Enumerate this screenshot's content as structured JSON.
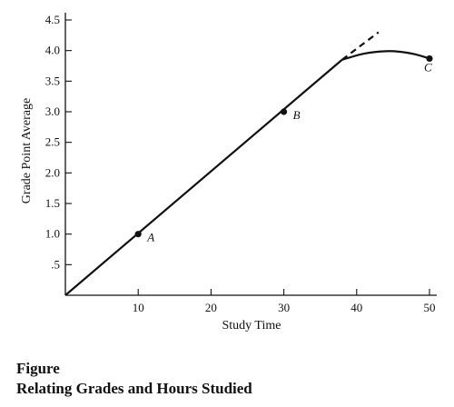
{
  "chart_data": {
    "type": "line",
    "xlabel": "Study Time",
    "ylabel": "Grade Point Average",
    "xlim": [
      0,
      50
    ],
    "ylim": [
      0,
      4.5
    ],
    "x_ticks": [
      10,
      20,
      30,
      40,
      50
    ],
    "x_tick_labels": [
      "10",
      "20",
      "30",
      "40",
      "50"
    ],
    "y_ticks": [
      0.5,
      1.0,
      1.5,
      2.0,
      2.5,
      3.0,
      3.5,
      4.0,
      4.5
    ],
    "y_tick_labels": [
      ".5",
      "1.0",
      "1.5",
      "2.0",
      "2.5",
      "3.0",
      "3.5",
      "4.0",
      "4.5"
    ],
    "grid": false,
    "series": [
      {
        "style": "solid",
        "x": [
          0,
          38
        ],
        "y": [
          0,
          3.85
        ]
      },
      {
        "style": "dashed",
        "x": [
          38,
          43
        ],
        "y": [
          3.85,
          4.3
        ]
      },
      {
        "style": "solid-curve",
        "x": [
          38,
          41,
          44,
          46,
          48,
          50
        ],
        "y": [
          3.85,
          3.95,
          3.99,
          3.98,
          3.94,
          3.87
        ]
      }
    ],
    "points": [
      {
        "label": "A",
        "x": 10,
        "y": 1.0
      },
      {
        "label": "B",
        "x": 30,
        "y": 3.0
      },
      {
        "label": "C",
        "x": 50,
        "y": 3.87
      }
    ],
    "line_color": "#111111"
  },
  "caption": {
    "label": "Figure",
    "title": "Relating Grades and Hours Studied"
  }
}
